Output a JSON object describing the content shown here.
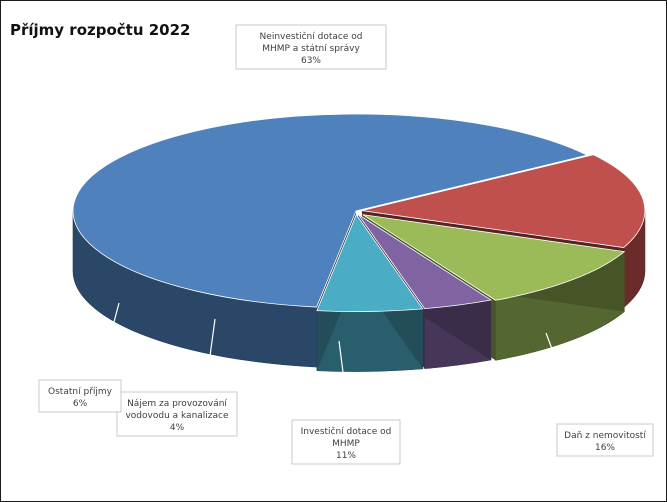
{
  "title": "Příjmy rozpočtu 2022",
  "chart_data": {
    "type": "pie",
    "title": "Příjmy rozpočtu 2022",
    "style": "3d-exploded",
    "slices": [
      {
        "label": "Neinvestiční dotace od MHMP a státní správy",
        "label_lines": [
          "Neinvestiční dotace od",
          "MHMP a státní správy"
        ],
        "value": 63,
        "display": "63%",
        "color": "#4f81bd"
      },
      {
        "label": "Daň z nemovitostí",
        "label_lines": [
          "Daň z nemovitostí"
        ],
        "value": 16,
        "display": "16%",
        "color": "#c0504d"
      },
      {
        "label": "Investiční dotace od MHMP",
        "label_lines": [
          "Investiční dotace od",
          "MHMP"
        ],
        "value": 11,
        "display": "11%",
        "color": "#9bbb59"
      },
      {
        "label": "Nájem za provozování vodovodu a kanalizace",
        "label_lines": [
          "Nájem za provozování",
          "vodovodu a kanalizace"
        ],
        "value": 4,
        "display": "4%",
        "color": "#8064a2"
      },
      {
        "label": "Ostatní příjmy",
        "label_lines": [
          "Ostatní příjmy"
        ],
        "value": 6,
        "display": "6%",
        "color": "#4bacc6"
      }
    ]
  }
}
